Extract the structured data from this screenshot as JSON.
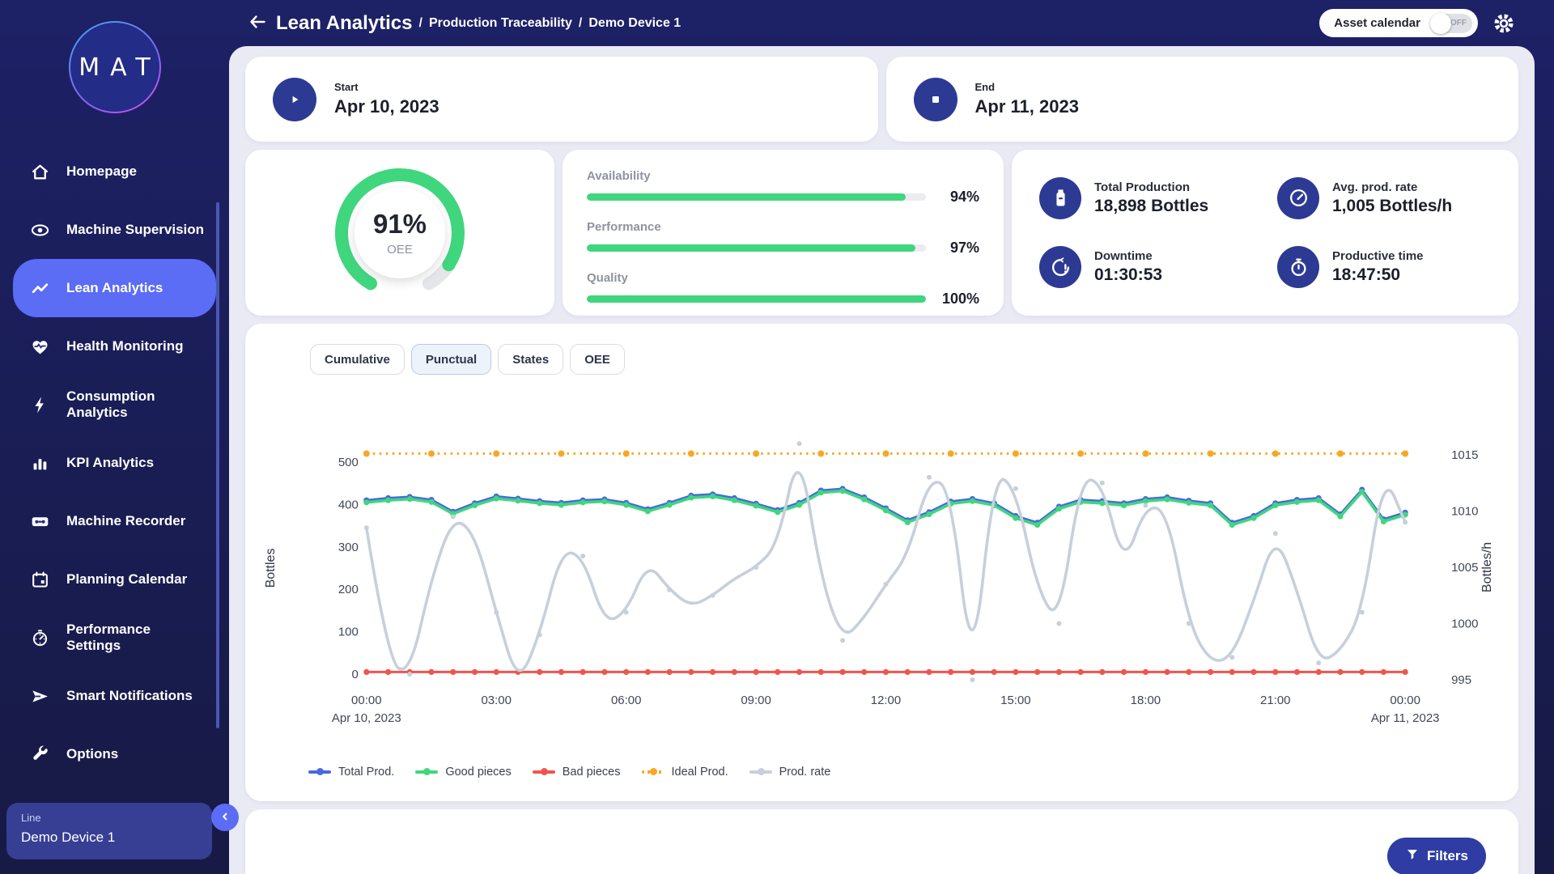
{
  "colors": {
    "sidebar_bg": "#232c86",
    "topbar_bg": "#1d2166",
    "active_item": "#5b6cf5",
    "primary_blue": "#2d3a94",
    "accent_green": "#3fd67e",
    "panel_bg": "#e9eaf4"
  },
  "header": {
    "title": "Lean Analytics",
    "separator": "/",
    "breadcrumb": [
      "Production Traceability",
      "Demo Device 1"
    ],
    "asset_calendar": {
      "label": "Asset calendar",
      "state": "OFF"
    }
  },
  "sidebar": {
    "logo": "MAT",
    "items": [
      {
        "label": "Homepage",
        "icon": "home-icon",
        "active": false
      },
      {
        "label": "Machine Supervision",
        "icon": "eye-icon",
        "active": false
      },
      {
        "label": "Lean Analytics",
        "icon": "trend-icon",
        "active": true
      },
      {
        "label": "Health Monitoring",
        "icon": "heart-pulse-icon",
        "active": false
      },
      {
        "label": "Consumption Analytics",
        "icon": "bolt-icon",
        "active": false
      },
      {
        "label": "KPI Analytics",
        "icon": "bar-chart-icon",
        "active": false
      },
      {
        "label": "Machine Recorder",
        "icon": "cassette-icon",
        "active": false
      },
      {
        "label": "Planning Calendar",
        "icon": "calendar-icon",
        "active": false
      },
      {
        "label": "Performance Settings",
        "icon": "gauge-icon",
        "active": false
      },
      {
        "label": "Smart Notifications",
        "icon": "send-icon",
        "active": false
      },
      {
        "label": "Options",
        "icon": "wrench-icon",
        "active": false
      }
    ],
    "line_selector": {
      "label": "Line",
      "value": "Demo Device 1"
    }
  },
  "period": {
    "start": {
      "label": "Start",
      "value": "Apr 10, 2023"
    },
    "end": {
      "label": "End",
      "value": "Apr 11, 2023"
    }
  },
  "oee": {
    "value": "91%",
    "label": "OEE",
    "percent": 91
  },
  "kpis": [
    {
      "label": "Availability",
      "value": "94%",
      "percent": 94
    },
    {
      "label": "Performance",
      "value": "97%",
      "percent": 97
    },
    {
      "label": "Quality",
      "value": "100%",
      "percent": 100
    }
  ],
  "stats": [
    {
      "label": "Total Production",
      "value": "18,898 Bottles",
      "icon": "bottle-icon"
    },
    {
      "label": "Avg. prod. rate",
      "value": "1,005 Bottles/h",
      "icon": "speedometer-icon"
    },
    {
      "label": "Downtime",
      "value": "01:30:53",
      "icon": "downtime-icon"
    },
    {
      "label": "Productive time",
      "value": "18:47:50",
      "icon": "stopwatch-icon"
    }
  ],
  "chart_tabs": {
    "items": [
      "Cumulative",
      "Punctual",
      "States",
      "OEE"
    ],
    "active": "Punctual"
  },
  "filters": {
    "label": "Filters"
  },
  "chart_data": {
    "type": "line",
    "title": "",
    "grid": false,
    "legend_position": "bottom",
    "x_axis": {
      "label": "",
      "tick_labels": [
        {
          "label": "00:00",
          "sub": "Apr 10, 2023"
        },
        {
          "label": "03:00",
          "sub": ""
        },
        {
          "label": "06:00",
          "sub": ""
        },
        {
          "label": "09:00",
          "sub": ""
        },
        {
          "label": "12:00",
          "sub": ""
        },
        {
          "label": "15:00",
          "sub": ""
        },
        {
          "label": "18:00",
          "sub": ""
        },
        {
          "label": "21:00",
          "sub": ""
        },
        {
          "label": "00:00",
          "sub": "Apr 11, 2023"
        }
      ]
    },
    "y_left": {
      "label": "Bottles",
      "range": [
        0,
        500
      ],
      "ticks": [
        0,
        100,
        200,
        300,
        400,
        500
      ]
    },
    "y_right": {
      "label": "Bottles/h",
      "range": [
        995,
        1015
      ],
      "ticks": [
        995,
        1000,
        1005,
        1010,
        1015
      ]
    },
    "series": [
      {
        "name": "Total Prod.",
        "color": "#4a67e3",
        "axis": "left",
        "style": "solid",
        "values": [
          410,
          415,
          418,
          411,
          383,
          403,
          419,
          414,
          408,
          404,
          410,
          412,
          404,
          389,
          404,
          421,
          424,
          415,
          402,
          387,
          404,
          433,
          437,
          417,
          391,
          363,
          382,
          407,
          413,
          403,
          373,
          357,
          395,
          411,
          408,
          403,
          413,
          417,
          409,
          403,
          357,
          373,
          403,
          411,
          415,
          377,
          435,
          365,
          381
        ]
      },
      {
        "name": "Good pieces",
        "color": "#3fd67e",
        "axis": "left",
        "style": "solid",
        "values": [
          405,
          410,
          413,
          406,
          378,
          398,
          414,
          409,
          403,
          399,
          405,
          407,
          399,
          384,
          399,
          416,
          419,
          410,
          397,
          382,
          399,
          428,
          432,
          412,
          386,
          358,
          377,
          402,
          408,
          398,
          368,
          352,
          390,
          406,
          403,
          398,
          408,
          412,
          404,
          398,
          352,
          368,
          398,
          406,
          410,
          372,
          430,
          360,
          376
        ]
      },
      {
        "name": "Bad pieces",
        "color": "#f05450",
        "axis": "left",
        "style": "solid",
        "values": [
          5,
          5,
          5,
          5,
          5,
          5,
          5,
          5,
          5,
          5,
          5,
          5,
          5,
          5,
          5,
          5,
          5,
          5,
          5,
          5,
          5,
          5,
          5,
          5,
          5,
          5,
          5,
          5,
          5,
          5,
          5,
          5,
          5,
          5,
          5,
          5,
          5,
          5,
          5,
          5,
          5,
          5,
          5,
          5,
          5,
          5,
          5,
          5,
          5
        ]
      },
      {
        "name": "Ideal Prod.",
        "color": "#f7a823",
        "axis": "left",
        "style": "dotted",
        "values": [
          520,
          520,
          520,
          520,
          520,
          520,
          520,
          520,
          520,
          520,
          520,
          520,
          520,
          520,
          520,
          520,
          520,
          520,
          520,
          520,
          520,
          520,
          520,
          520,
          520,
          520,
          520,
          520,
          520,
          520,
          520,
          520,
          520,
          520,
          520,
          520,
          520,
          520,
          520,
          520,
          520,
          520,
          520,
          520,
          520,
          520,
          520,
          520,
          520
        ]
      },
      {
        "name": "Prod. rate",
        "color": "#c7d0da",
        "axis": "right",
        "style": "smooth",
        "values": [
          1008.5,
          996.5,
          995.5,
          1004,
          1009.5,
          1008,
          1001,
          994.5,
          999,
          1006.5,
          1006,
          1000,
          1001,
          1005.5,
          1003,
          1001.5,
          1002.5,
          1004,
          1005,
          1007,
          1016,
          1004,
          998.5,
          1000.5,
          1003.5,
          1006,
          1013,
          1012,
          995,
          1013.5,
          1012,
          1003,
          1000,
          1013,
          1012.5,
          1005,
          1010.5,
          1010,
          1000,
          996.5,
          997,
          1002,
          1008,
          1003,
          996.5,
          997.5,
          1001,
          1013.5,
          1009
        ]
      }
    ]
  }
}
